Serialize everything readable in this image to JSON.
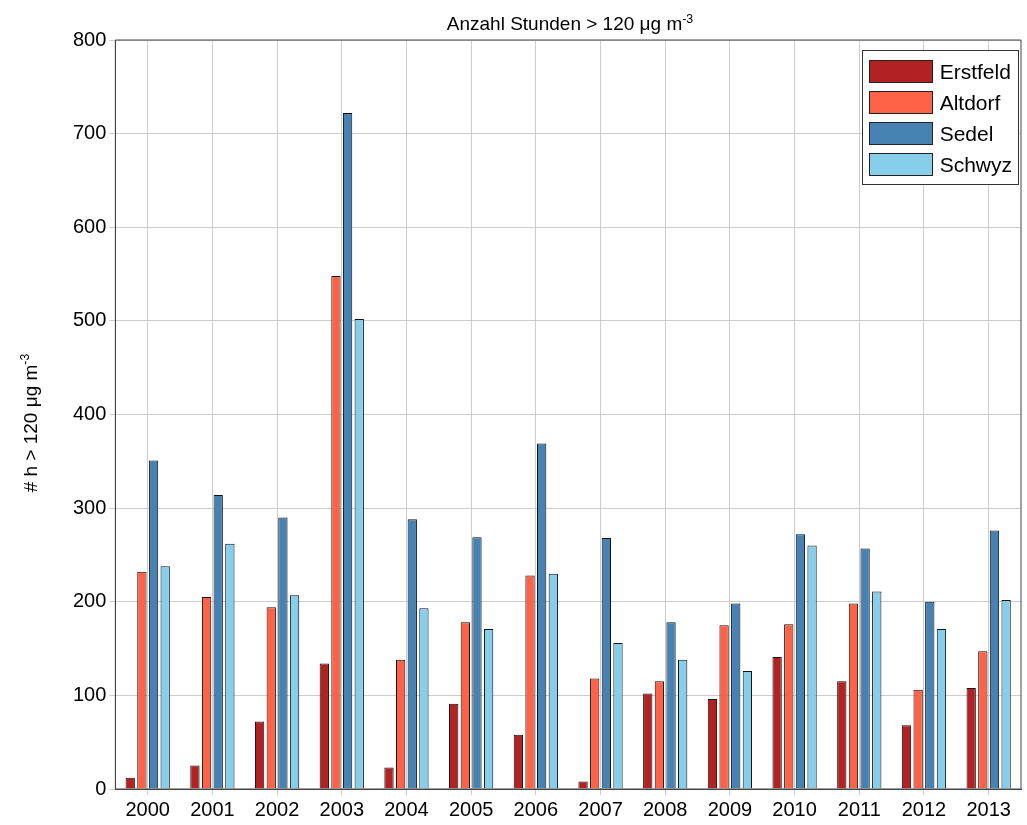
{
  "chart_data": {
    "type": "bar",
    "title": "Anzahl Stunden > 120 μg m$^{-3}$",
    "ylabel": "# h > 120 μg m$^{-3}$",
    "categories": [
      "2000",
      "2001",
      "2002",
      "2003",
      "2004",
      "2005",
      "2006",
      "2007",
      "2008",
      "2009",
      "2010",
      "2011",
      "2012",
      "2013"
    ],
    "series": [
      {
        "name": "Erstfeld",
        "color": "#b22222",
        "values": [
          12,
          25,
          72,
          134,
          23,
          91,
          58,
          8,
          102,
          96,
          141,
          115,
          68,
          108
        ]
      },
      {
        "name": "Altdorf",
        "color": "#ff6347",
        "values": [
          232,
          205,
          194,
          548,
          138,
          178,
          228,
          118,
          115,
          175,
          176,
          198,
          106,
          147
        ]
      },
      {
        "name": "Sedel",
        "color": "#4682b4",
        "values": [
          351,
          314,
          290,
          722,
          288,
          269,
          369,
          268,
          178,
          198,
          272,
          257,
          200,
          276
        ]
      },
      {
        "name": "Schwyz",
        "color": "#87ceeb",
        "values": [
          238,
          262,
          207,
          502,
          193,
          171,
          230,
          156,
          138,
          126,
          260,
          211,
          171,
          202
        ]
      }
    ],
    "ylim": [
      0,
      800
    ],
    "yticks": [
      0,
      100,
      200,
      300,
      400,
      500,
      600,
      700,
      800
    ],
    "grid": true,
    "legend": "top right"
  }
}
